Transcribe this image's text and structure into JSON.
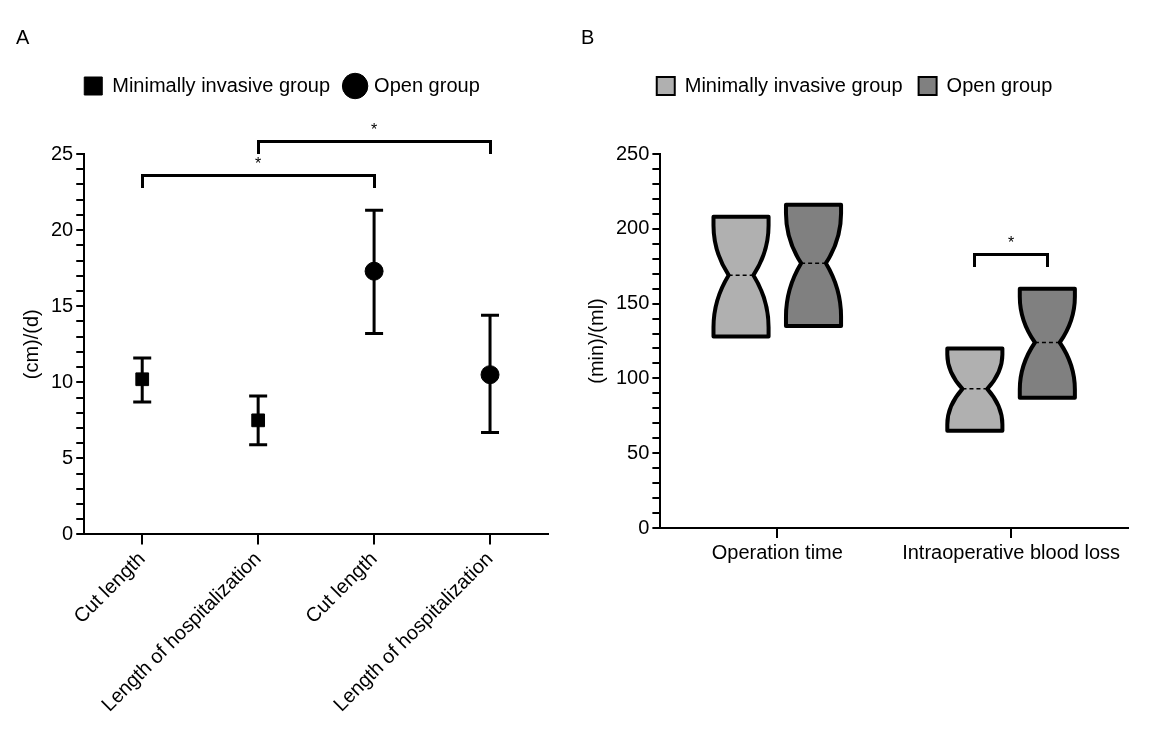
{
  "chart_data": [
    {
      "type": "scatter",
      "title": "A",
      "categories": [
        "Cut length",
        "Length of hospitalization",
        "Cut length",
        "Length of hospitalization"
      ],
      "ylabel": "(cm)/(d)",
      "ylim": [
        0,
        25
      ],
      "yticks": [
        0,
        {
          "value": 1,
          "label": null
        },
        {
          "value": 2,
          "label": null
        },
        {
          "value": 3,
          "label": null
        },
        {
          "value": 4,
          "label": null
        },
        5,
        {
          "value": 6,
          "label": null
        },
        {
          "value": 7,
          "label": null
        },
        {
          "value": 8,
          "label": null
        },
        {
          "value": 9,
          "label": null
        },
        10,
        {
          "value": 11,
          "label": null
        },
        {
          "value": 12,
          "label": null
        },
        {
          "value": 13,
          "label": null
        },
        {
          "value": 14,
          "label": null
        },
        15,
        {
          "value": 16,
          "label": null
        },
        {
          "value": 17,
          "label": null
        },
        {
          "value": 18,
          "label": null
        },
        {
          "value": 19,
          "label": null
        },
        20,
        {
          "value": 21,
          "label": null
        },
        {
          "value": 22,
          "label": null
        },
        {
          "value": 23,
          "label": null
        },
        {
          "value": 24,
          "label": null
        },
        25
      ],
      "series": [
        {
          "name": "Minimally invasive group",
          "color": "#000000",
          "marker": "square",
          "values": [
            10.2,
            7.5,
            null,
            null
          ],
          "errors": [
            [
              8.7,
              11.6
            ],
            [
              5.9,
              9.1
            ],
            null,
            null
          ]
        },
        {
          "name": "Open group",
          "color": "#000000",
          "marker": "circle",
          "values": [
            null,
            null,
            17.3,
            10.5
          ],
          "errors": [
            null,
            null,
            [
              13.2,
              21.3
            ],
            [
              6.7,
              14.4
            ]
          ]
        }
      ],
      "legend": "top",
      "annotations": [
        "*",
        "*"
      ]
    },
    {
      "type": "box",
      "title": "B",
      "categories": [
        "Operation time",
        "Intraoperative blood loss"
      ],
      "ylabel": "(min)/(ml)",
      "ylim": [
        0,
        250
      ],
      "yticks": [
        0,
        {
          "value": 10,
          "label": null
        },
        {
          "value": 20,
          "label": null
        },
        {
          "value": 30,
          "label": null
        },
        {
          "value": 40,
          "label": null
        },
        50,
        {
          "value": 60,
          "label": null
        },
        {
          "value": 70,
          "label": null
        },
        {
          "value": 80,
          "label": null
        },
        {
          "value": 90,
          "label": null
        },
        100,
        {
          "value": 110,
          "label": null
        },
        {
          "value": 120,
          "label": null
        },
        {
          "value": 130,
          "label": null
        },
        {
          "value": 140,
          "label": null
        },
        150,
        {
          "value": 160,
          "label": null
        },
        {
          "value": 170,
          "label": null
        },
        {
          "value": 180,
          "label": null
        },
        {
          "value": 190,
          "label": null
        },
        200,
        {
          "value": 210,
          "label": null
        },
        {
          "value": 220,
          "label": null
        },
        {
          "value": 230,
          "label": null
        },
        {
          "value": 240,
          "label": null
        },
        250
      ],
      "series": [
        {
          "name": "Minimally invasive group",
          "color": "#b0b0b0",
          "boxes": [
            {
              "low": 128,
              "q1": 128,
              "median": 169,
              "q3": 208,
              "high": 208
            },
            {
              "low": 65,
              "q1": 65,
              "median": 93,
              "q3": 120,
              "high": 120
            }
          ]
        },
        {
          "name": "Open group",
          "color": "#808080",
          "boxes": [
            {
              "low": 135,
              "q1": 135,
              "median": 177,
              "q3": 216,
              "high": 216
            },
            {
              "low": 87,
              "q1": 87,
              "median": 124,
              "q3": 160,
              "high": 160
            }
          ]
        }
      ],
      "legend": "top",
      "annotations": [
        "*"
      ]
    }
  ]
}
